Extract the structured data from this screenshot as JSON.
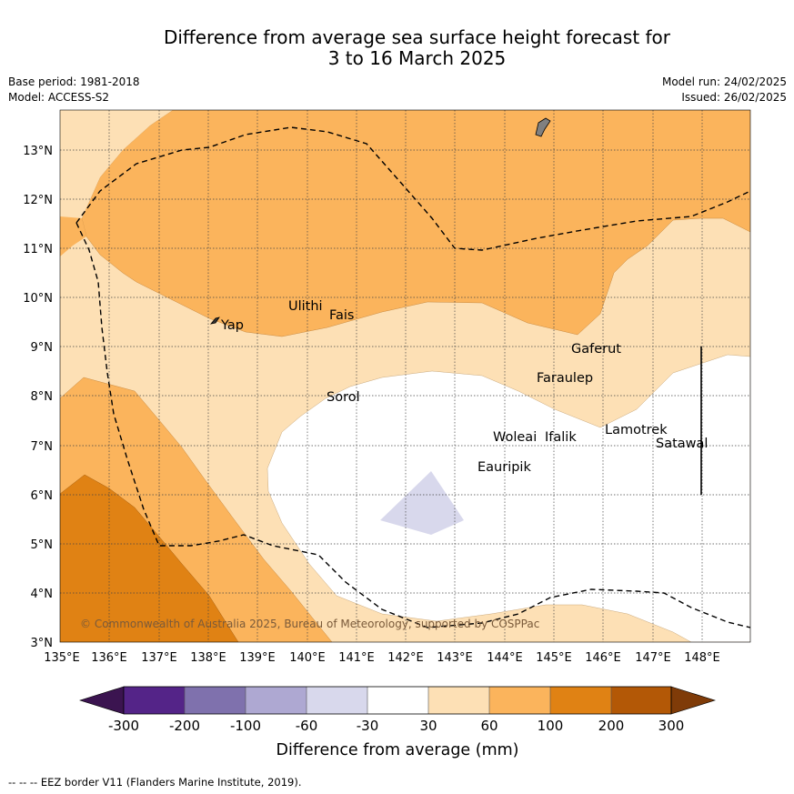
{
  "title_line1": "Difference from average sea surface height forecast for",
  "title_line2": "3 to 16 March 2025",
  "base_period": "Base period: 1981-2018",
  "model": "Model: ACCESS-S2",
  "model_run": "Model run: 24/02/2025",
  "issued": "Issued: 26/02/2025",
  "copyright": "© Commonwealth of Australia 2025, Bureau of Meteorology, supported by COSPPac",
  "footer": "--  --  -- EEZ border V11 (Flanders Marine Institute, 2019).",
  "lon_labels": [
    "135°E",
    "136°E",
    "137°E",
    "138°E",
    "139°E",
    "140°E",
    "141°E",
    "142°E",
    "143°E",
    "144°E",
    "145°E",
    "146°E",
    "147°E",
    "148°E"
  ],
  "lat_labels": [
    "3°N",
    "4°N",
    "5°N",
    "6°N",
    "7°N",
    "8°N",
    "9°N",
    "10°N",
    "11°N",
    "12°N",
    "13°N"
  ],
  "places": [
    "Yap",
    "Ulithi",
    "Fais",
    "Sorol",
    "Gaferut",
    "Faraulep",
    "Woleai",
    "Ifalik",
    "Lamotrek",
    "Satawal",
    "Eauripik"
  ],
  "colorbar": {
    "label": "Difference from average (mm)",
    "ticks": [
      "-300",
      "-200",
      "-100",
      "-60",
      "-30",
      "30",
      "60",
      "100",
      "200",
      "300"
    ],
    "colors": [
      "#3b1450",
      "#542488",
      "#7f71ad",
      "#aea8d2",
      "#d8d8ec",
      "#ffffff",
      "#fde0b5",
      "#fbb45c",
      "#e08214",
      "#b35806",
      "#7f3b08"
    ]
  }
}
